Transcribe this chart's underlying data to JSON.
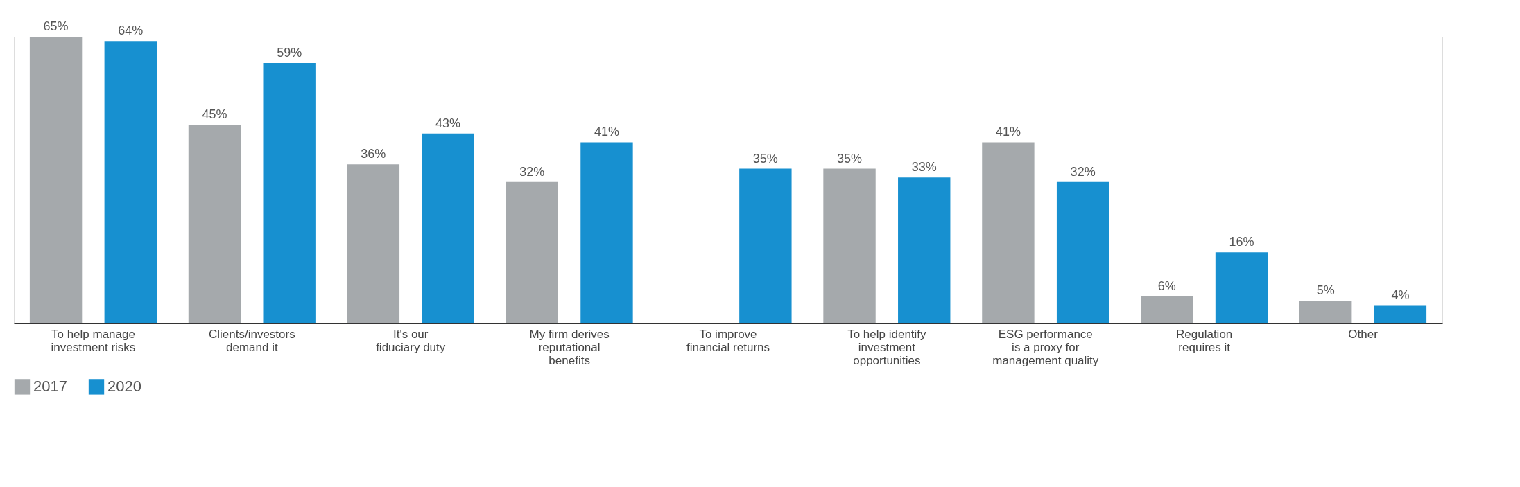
{
  "chart_data": {
    "type": "bar",
    "categories": [
      "To help manage\ninvestment risks",
      "Clients/investors\ndemand it",
      "It's our\nfiduciary duty",
      "My firm derives\nreputational\nbenefits",
      "To improve\nfinancial returns",
      "To help identify\ninvestment\nopportunities",
      "ESG performance\nis a proxy for\nmanagement quality",
      "Regulation\nrequires it",
      "Other"
    ],
    "series": [
      {
        "name": "2017",
        "color": "#a5a9ac",
        "values": [
          65,
          45,
          36,
          32,
          null,
          35,
          41,
          6,
          5
        ],
        "value_labels": [
          "65%",
          "45%",
          "36%",
          "32%",
          null,
          "35%",
          "41%",
          "6%",
          "5%"
        ]
      },
      {
        "name": "2020",
        "color": "#1790d0",
        "values": [
          64,
          59,
          43,
          41,
          35,
          33,
          32,
          16,
          4
        ],
        "value_labels": [
          "64%",
          "59%",
          "43%",
          "41%",
          "35%",
          "33%",
          "32%",
          "16%",
          "4%"
        ]
      }
    ],
    "legend": "bottom",
    "grid": false
  }
}
